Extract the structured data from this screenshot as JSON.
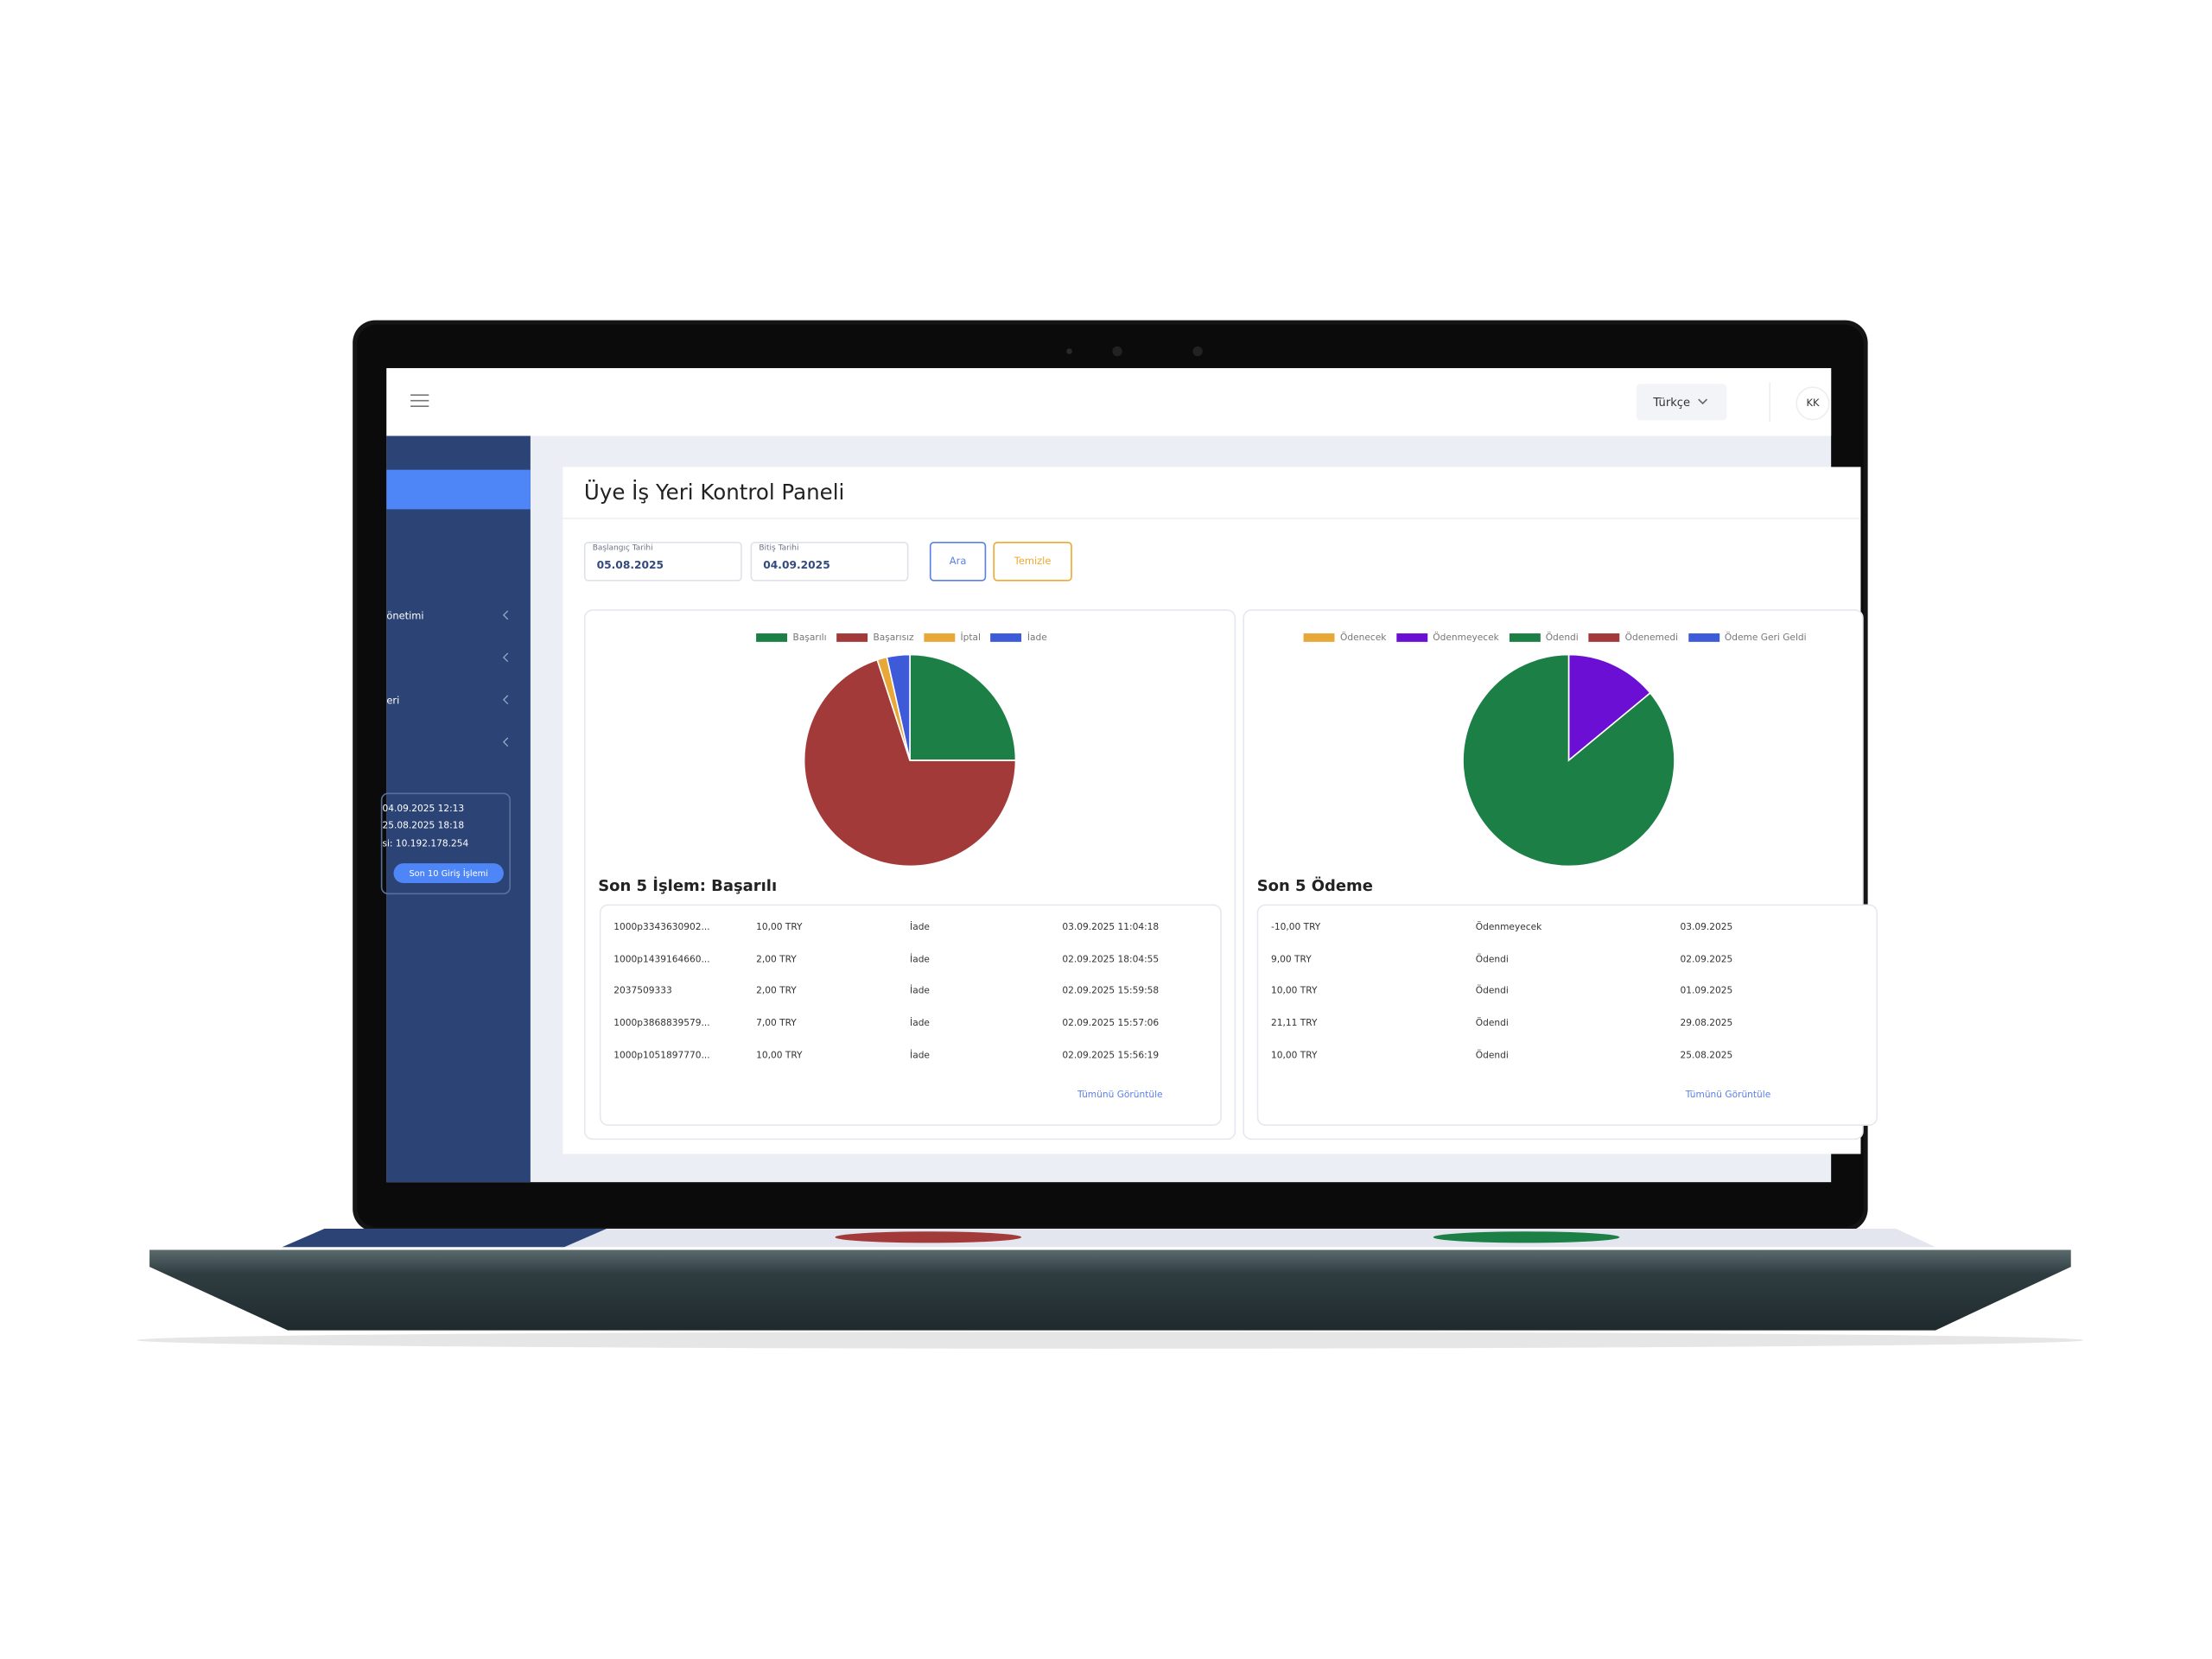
{
  "header": {
    "language": "Türkçe",
    "user": "KK"
  },
  "sidebar": {
    "menu": [
      "önetimi",
      "eri"
    ],
    "login": {
      "lines": [
        "04.09.2025 12:13",
        "25.08.2025 18:18",
        "si: 10.192.178.254"
      ],
      "button": "Son 10 Giriş İşlemi"
    }
  },
  "page": {
    "title": "Üye İş Yeri Kontrol Paneli",
    "filters": {
      "start_label": "Başlangıç Tarihi",
      "start_value": "05.08.2025",
      "end_label": "Bitiş Tarihi",
      "end_value": "04.09.2025",
      "search": "Ara",
      "clear": "Temizle"
    }
  },
  "charts": [
    {
      "type": "pie",
      "categories": [
        "Başarılı",
        "Başarısız",
        "İptal",
        "İade"
      ],
      "values": [
        25,
        70,
        1.5,
        3.5
      ],
      "colors": [
        "#1b7f46",
        "#a33a3a",
        "#e8a838",
        "#3d5bd9"
      ]
    },
    {
      "type": "pie",
      "categories": [
        "Ödenecek",
        "Ödenmeyecek",
        "Ödendi",
        "Ödenemedi",
        "Ödeme Geri Geldi"
      ],
      "values": [
        0,
        14,
        86,
        0,
        0
      ],
      "colors": [
        "#e8a838",
        "#6b0fd4",
        "#1b7f46",
        "#a33a3a",
        "#3d5bd9"
      ]
    }
  ],
  "tables": [
    {
      "title": "Son 5 İşlem: Başarılı",
      "link": "Tümünü Görüntüle",
      "rows": [
        [
          "1000p3343630902...",
          "10,00 TRY",
          "İade",
          "03.09.2025 11:04:18"
        ],
        [
          "1000p1439164660...",
          "2,00 TRY",
          "İade",
          "02.09.2025 18:04:55"
        ],
        [
          "2037509333",
          "2,00 TRY",
          "İade",
          "02.09.2025 15:59:58"
        ],
        [
          "1000p3868839579...",
          "7,00 TRY",
          "İade",
          "02.09.2025 15:57:06"
        ],
        [
          "1000p1051897770...",
          "10,00 TRY",
          "İade",
          "02.09.2025 15:56:19"
        ]
      ]
    },
    {
      "title": "Son 5 Ödeme",
      "link": "Tümünü Görüntüle",
      "rows": [
        [
          "-10,00 TRY",
          "Ödenmeyecek",
          "03.09.2025"
        ],
        [
          "9,00 TRY",
          "Ödendi",
          "02.09.2025"
        ],
        [
          "10,00 TRY",
          "Ödendi",
          "01.09.2025"
        ],
        [
          "21,11 TRY",
          "Ödendi",
          "29.08.2025"
        ],
        [
          "10,00 TRY",
          "Ödendi",
          "25.08.2025"
        ]
      ]
    }
  ]
}
